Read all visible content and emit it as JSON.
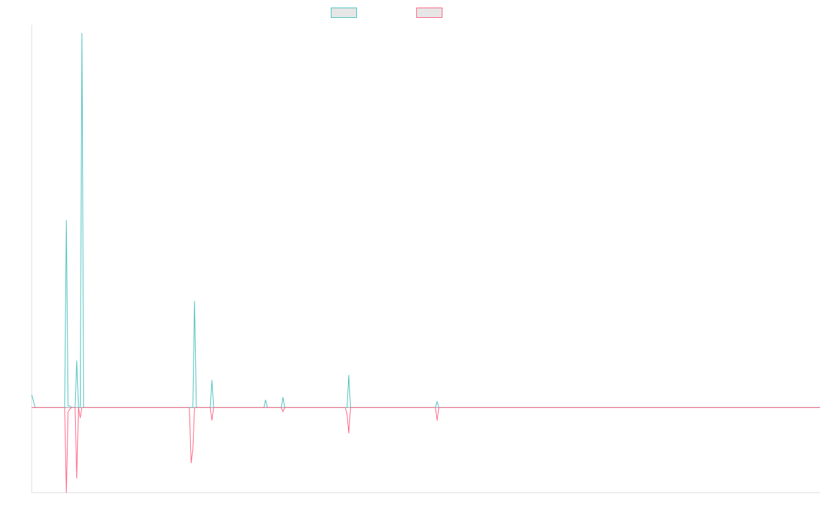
{
  "chart_data": {
    "type": "line",
    "title": "",
    "xlabel": "",
    "ylabel": "",
    "grid": false,
    "legend_placement": "top-center",
    "ylim": [
      -1.0,
      4.5
    ],
    "x": [
      0,
      3,
      4,
      5,
      6,
      7,
      8,
      9,
      10,
      11,
      12,
      13,
      14,
      15,
      16,
      17,
      18,
      19,
      20,
      21,
      22,
      23,
      24,
      25,
      26,
      27,
      28,
      29,
      30,
      31,
      32,
      33,
      34,
      35,
      36,
      37,
      38,
      39,
      40,
      41,
      42,
      43,
      44,
      45,
      46,
      47,
      48,
      49,
      50,
      51,
      52,
      53,
      54,
      55,
      56,
      57,
      58,
      59,
      60,
      61,
      62,
      63,
      64,
      65,
      66,
      67,
      68,
      69,
      70,
      71,
      72,
      73,
      74,
      75,
      76,
      77,
      78,
      79,
      80,
      81,
      82,
      83,
      84,
      85,
      86,
      87,
      88,
      89,
      90,
      91,
      92,
      93,
      94,
      95,
      96,
      97,
      98,
      99,
      100,
      101,
      102,
      103,
      104,
      105,
      106,
      107,
      108,
      109,
      110,
      111,
      112,
      113,
      114,
      115,
      116,
      117,
      118,
      119,
      120,
      121,
      122,
      123,
      124,
      125,
      126,
      127,
      128,
      129,
      130,
      131,
      132,
      133,
      134,
      135,
      136,
      137,
      138,
      139,
      140,
      141,
      142,
      143,
      144,
      145,
      146,
      147,
      148,
      149,
      150,
      151,
      152,
      153,
      154,
      155,
      156,
      157,
      158,
      159,
      160,
      161,
      162,
      163,
      164,
      165,
      166,
      167,
      168,
      169,
      170,
      171,
      172,
      173,
      174,
      175,
      176,
      177,
      178,
      179,
      180,
      181,
      182,
      183,
      184,
      185,
      186,
      187,
      188,
      189,
      190,
      191,
      192,
      193,
      194,
      195,
      196,
      197,
      198,
      199,
      200,
      201,
      202,
      203,
      204,
      205,
      206,
      207,
      208,
      209,
      210,
      211,
      212,
      213,
      214,
      215,
      216,
      217,
      218,
      219,
      220,
      221,
      222,
      223,
      224,
      225,
      226,
      227,
      228,
      229,
      230,
      231,
      232,
      233,
      234,
      235,
      236,
      237,
      238,
      239,
      240,
      241,
      242,
      243,
      244,
      245,
      246,
      247,
      248,
      249,
      250,
      251,
      252,
      253,
      254,
      255,
      256,
      257,
      258,
      259,
      260,
      261,
      262,
      263,
      264,
      265,
      266,
      267,
      268,
      269,
      270,
      271,
      272,
      273,
      274,
      275,
      276,
      277,
      278,
      279,
      280,
      281,
      282,
      283,
      284,
      285,
      286,
      287,
      288,
      289,
      290,
      291,
      292,
      293,
      294,
      295,
      296,
      297,
      298,
      299,
      300,
      301,
      302,
      303,
      304,
      305,
      306,
      307,
      308,
      309,
      310,
      311,
      312,
      313,
      314,
      315,
      316,
      317,
      318,
      319,
      320,
      321,
      322,
      323,
      324,
      325,
      326,
      327,
      328,
      329,
      330,
      331,
      332,
      333,
      334,
      335,
      336,
      337,
      338,
      339,
      340,
      341,
      342,
      343,
      344,
      345,
      346,
      347,
      348,
      349,
      350,
      351,
      352,
      353,
      354,
      355,
      356,
      357,
      358,
      359,
      360,
      361,
      362,
      363,
      364,
      365,
      366,
      367,
      368,
      369,
      370,
      371,
      372,
      373,
      374,
      375,
      376,
      377,
      378,
      379,
      380,
      381,
      382,
      383,
      384,
      385,
      386,
      387,
      388,
      389,
      390,
      391,
      392,
      393,
      394,
      395,
      396,
      397,
      398,
      399,
      400,
      401,
      402,
      403,
      404,
      405,
      406,
      407,
      408,
      409,
      410,
      411,
      412,
      413,
      414,
      415,
      416,
      417,
      418,
      419,
      420,
      421,
      422,
      423,
      424,
      425,
      426,
      427,
      428,
      429,
      430,
      431,
      432,
      433,
      434,
      435,
      436,
      437,
      438,
      439,
      440,
      441,
      442,
      443,
      444,
      445,
      446,
      447,
      448,
      449,
      450,
      451,
      452,
      453,
      454,
      455
    ],
    "series": [
      {
        "name": "",
        "color": "#4bc0c0",
        "points": [
          [
            0,
            0.15
          ],
          [
            2,
            0.0
          ],
          [
            19,
            0.0
          ],
          [
            20,
            2.2
          ],
          [
            21,
            0.02
          ],
          [
            22,
            0.02
          ],
          [
            23,
            0.0
          ],
          [
            24,
            0.0
          ],
          [
            25,
            0.0
          ],
          [
            26,
            0.55
          ],
          [
            27,
            0.0
          ],
          [
            28,
            0.0
          ],
          [
            29,
            4.4
          ],
          [
            30,
            0.0
          ],
          [
            31,
            0.0
          ],
          [
            91,
            0.0
          ],
          [
            92,
            0.0
          ],
          [
            93,
            0.0
          ],
          [
            94,
            1.25
          ],
          [
            95,
            0.0
          ],
          [
            103,
            0.0
          ],
          [
            104,
            0.32
          ],
          [
            105,
            0.0
          ],
          [
            134,
            0.0
          ],
          [
            135,
            0.09
          ],
          [
            136,
            0.0
          ],
          [
            144,
            0.0
          ],
          [
            145,
            0.12
          ],
          [
            146,
            0.0
          ],
          [
            181,
            0.0
          ],
          [
            182,
            0.0
          ],
          [
            183,
            0.38
          ],
          [
            184,
            0.0
          ],
          [
            233,
            0.0
          ],
          [
            234,
            0.07
          ],
          [
            235,
            0.0
          ],
          [
            455,
            0.0
          ]
        ]
      },
      {
        "name": "",
        "color": "#ff6384",
        "points": [
          [
            0,
            0.0
          ],
          [
            19,
            0.0
          ],
          [
            20,
            -1.0
          ],
          [
            21,
            -0.05
          ],
          [
            22,
            -0.02
          ],
          [
            23,
            0.0
          ],
          [
            24,
            0.0
          ],
          [
            25,
            0.0
          ],
          [
            26,
            -0.83
          ],
          [
            27,
            0.0
          ],
          [
            28,
            -0.12
          ],
          [
            29,
            0.0
          ],
          [
            30,
            0.0
          ],
          [
            91,
            0.0
          ],
          [
            92,
            -0.65
          ],
          [
            93,
            -0.5
          ],
          [
            94,
            0.0
          ],
          [
            103,
            0.0
          ],
          [
            104,
            -0.15
          ],
          [
            105,
            0.0
          ],
          [
            134,
            0.0
          ],
          [
            135,
            0.0
          ],
          [
            136,
            0.0
          ],
          [
            144,
            0.0
          ],
          [
            145,
            -0.05
          ],
          [
            146,
            0.0
          ],
          [
            181,
            0.0
          ],
          [
            182,
            -0.08
          ],
          [
            183,
            -0.3
          ],
          [
            184,
            0.0
          ],
          [
            233,
            0.0
          ],
          [
            234,
            -0.15
          ],
          [
            235,
            0.0
          ],
          [
            455,
            0.0
          ]
        ]
      }
    ],
    "xlim": [
      0,
      455
    ]
  }
}
